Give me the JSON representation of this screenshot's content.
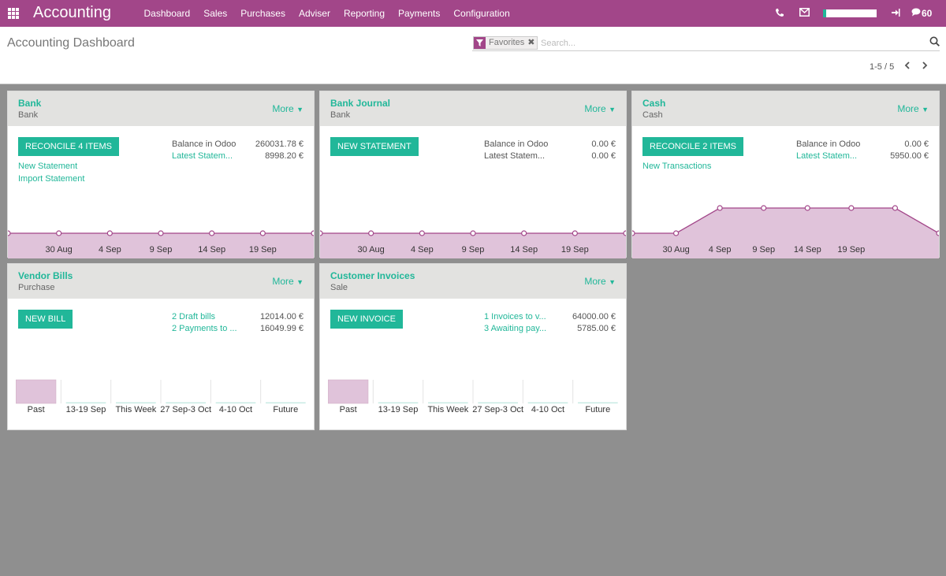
{
  "topbar": {
    "brand": "Accounting",
    "menu": [
      "Dashboard",
      "Sales",
      "Purchases",
      "Adviser",
      "Reporting",
      "Payments",
      "Configuration"
    ],
    "icons": [
      "apps-icon",
      "phone-icon",
      "mail-icon",
      "signout-icon",
      "chat-icon"
    ],
    "progress_fraction": 0.06,
    "messages_count": "60",
    "brand_color": "#a24689",
    "accent_color": "#21b799"
  },
  "control_panel": {
    "title": "Accounting Dashboard",
    "facet_label": "Favorites",
    "search_placeholder": "Search...",
    "pager": "1-5 / 5"
  },
  "cards": {
    "bank": {
      "title": "Bank",
      "subtitle": "Bank",
      "more": "More",
      "button": "RECONCILE 4 ITEMS",
      "links": [
        "New Statement",
        "Import Statement"
      ],
      "rows": [
        {
          "label": "Balance in Odoo",
          "value": "260031.78 €",
          "link": false
        },
        {
          "label": "Latest Statem...",
          "value": "8998.20 €",
          "link": true
        }
      ],
      "chart": {
        "type": "area",
        "x_labels": [
          "30 Aug",
          "4 Sep",
          "9 Sep",
          "14 Sep",
          "19 Sep"
        ],
        "values": [
          0,
          0,
          0,
          0,
          0,
          0,
          0
        ]
      }
    },
    "bank_journal": {
      "title": "Bank Journal",
      "subtitle": "Bank",
      "more": "More",
      "button": "NEW STATEMENT",
      "links": [],
      "rows": [
        {
          "label": "Balance in Odoo",
          "value": "0.00 €",
          "link": false
        },
        {
          "label": "Latest Statem...",
          "value": "0.00 €",
          "link": false
        }
      ],
      "chart": {
        "type": "area",
        "x_labels": [
          "30 Aug",
          "4 Sep",
          "9 Sep",
          "14 Sep",
          "19 Sep"
        ],
        "values": [
          0,
          0,
          0,
          0,
          0,
          0,
          0
        ]
      }
    },
    "cash": {
      "title": "Cash",
      "subtitle": "Cash",
      "more": "More",
      "button": "RECONCILE 2 ITEMS",
      "links": [
        "New Transactions"
      ],
      "rows": [
        {
          "label": "Balance in Odoo",
          "value": "0.00 €",
          "link": false
        },
        {
          "label": "Latest Statem...",
          "value": "5950.00 €",
          "link": true
        }
      ],
      "chart": {
        "type": "area",
        "x_labels": [
          "30 Aug",
          "4 Sep",
          "9 Sep",
          "14 Sep",
          "19 Sep"
        ],
        "values": [
          0,
          0,
          1,
          1,
          1,
          1,
          1,
          0
        ]
      }
    },
    "vendor_bills": {
      "title": "Vendor Bills",
      "subtitle": "Purchase",
      "more": "More",
      "button": "NEW BILL",
      "links": [],
      "rows": [
        {
          "label": "2 Draft bills",
          "value": "12014.00 €",
          "link": true
        },
        {
          "label": "2 Payments to ...",
          "value": "16049.99 €",
          "link": true
        }
      ],
      "chart": {
        "type": "bar",
        "categories": [
          "Past",
          "13-19 Sep",
          "This Week",
          "27 Sep-3 Oct",
          "4-10 Oct",
          "Future"
        ],
        "values": [
          1,
          0,
          0,
          0,
          0,
          0
        ]
      }
    },
    "customer_invoices": {
      "title": "Customer Invoices",
      "subtitle": "Sale",
      "more": "More",
      "button": "NEW INVOICE",
      "links": [],
      "rows": [
        {
          "label": "1 Invoices to v...",
          "value": "64000.00 €",
          "link": true
        },
        {
          "label": "3 Awaiting pay...",
          "value": "5785.00 €",
          "link": true
        }
      ],
      "chart": {
        "type": "bar",
        "categories": [
          "Past",
          "13-19 Sep",
          "This Week",
          "27 Sep-3 Oct",
          "4-10 Oct",
          "Future"
        ],
        "values": [
          1,
          0,
          0,
          0,
          0,
          0
        ]
      }
    }
  }
}
